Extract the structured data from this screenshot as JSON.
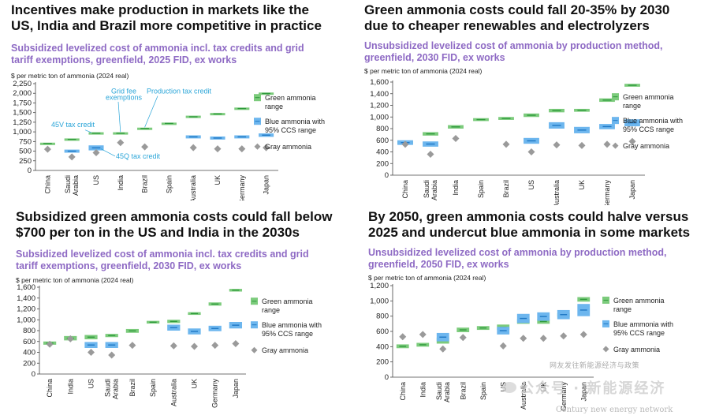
{
  "legend_labels": {
    "green": [
      "Green ammonia",
      "range"
    ],
    "blue": [
      "Blue ammonia with",
      "95% CCS range"
    ],
    "gray": "Gray ammonia"
  },
  "colors": {
    "green": "#7ccb7c",
    "green_mid": "#2f9a3c",
    "blue": "#6db6ee",
    "blue_mid": "#1f78c4",
    "gray": "#9a9a9a",
    "subtitle": "#8e6ac4",
    "callout": "#2aa5d8"
  },
  "watermark": {
    "line1": "网友发往新能源经济与政策",
    "line2": "Century new energy network",
    "account": "公众号 · 新能源经济"
  },
  "charts": [
    {
      "headline": [
        "Incentives make production in markets like the",
        "US, India and Brazil more competitive in practice"
      ],
      "subtitle": [
        "Subsidized levelized cost of ammonia incl. tax credits and grid",
        "tariff exemptions, greenfield, 2025 FID, ex works"
      ],
      "unit": "$ per metric ton of ammonia (2024 real)",
      "callouts": [
        "45V tax credit",
        "Grid fee",
        "exemptions",
        "Production tax credit",
        "45Q tax credit"
      ],
      "chart_data": {
        "type": "range",
        "ylim": [
          0,
          2250
        ],
        "yticks": [
          0,
          250,
          500,
          750,
          1000,
          1250,
          1500,
          1750,
          2000,
          2250
        ],
        "categories": [
          "China",
          "Saudi Arabia",
          "US",
          "India",
          "Brazil",
          "Spain",
          "Australia",
          "UK",
          "Germany",
          "Japan"
        ],
        "green": [
          [
            680,
            720
          ],
          [
            780,
            830
          ],
          [
            940,
            990
          ],
          [
            940,
            990
          ],
          [
            1070,
            1110
          ],
          [
            1200,
            1240
          ],
          [
            1360,
            1420
          ],
          [
            1440,
            1490
          ],
          [
            1580,
            1630
          ],
          [
            1970,
            2020
          ]
        ],
        "blue": [
          null,
          [
            460,
            540
          ],
          [
            520,
            650
          ],
          null,
          null,
          null,
          [
            830,
            910
          ],
          [
            800,
            880
          ],
          [
            830,
            910
          ],
          [
            870,
            960
          ]
        ],
        "gray": [
          550,
          350,
          460,
          720,
          610,
          null,
          590,
          560,
          560,
          590
        ]
      }
    },
    {
      "headline": [
        "Green ammonia costs could fall 20-35% by 2030",
        "due to cheaper renewables and electrolyzers"
      ],
      "subtitle": [
        "Unsubsidized levelized cost of ammonia by production method,",
        "greenfield, 2030 FID, ex works"
      ],
      "unit": "$ per metric ton of ammonia (2024 real)",
      "callouts": [],
      "chart_data": {
        "type": "range",
        "ylim": [
          0,
          1600
        ],
        "yticks": [
          0,
          200,
          400,
          600,
          800,
          1000,
          1200,
          1400,
          1600
        ],
        "categories": [
          "China",
          "Saudi Arabia",
          "India",
          "Spain",
          "Brazil",
          "US",
          "Australia",
          "UK",
          "Germany",
          "Japan"
        ],
        "green": [
          [
            540,
            590
          ],
          [
            680,
            740
          ],
          [
            800,
            860
          ],
          [
            930,
            980
          ],
          [
            950,
            1000
          ],
          [
            1000,
            1060
          ],
          [
            1080,
            1140
          ],
          [
            1090,
            1140
          ],
          [
            1260,
            1320
          ],
          [
            1520,
            1570
          ]
        ],
        "blue": [
          [
            520,
            600
          ],
          [
            490,
            580
          ],
          null,
          null,
          null,
          [
            540,
            640
          ],
          [
            800,
            910
          ],
          [
            720,
            830
          ],
          [
            790,
            880
          ],
          [
            840,
            960
          ]
        ],
        "gray": [
          530,
          360,
          630,
          null,
          530,
          400,
          520,
          510,
          530,
          580
        ]
      }
    },
    {
      "headline": [
        "Subsidized green ammonia costs could fall below",
        "$700 per ton in the US and India in the 2030s"
      ],
      "subtitle": [
        "Subsidized levelized cost of ammonia incl. tax credits and grid",
        "tariff exemptions, greenfield, 2030 FID, ex works"
      ],
      "unit": "$ per metric ton of ammonia (2024 real)",
      "callouts": [],
      "chart_data": {
        "type": "range",
        "ylim": [
          0,
          1600
        ],
        "yticks": [
          0,
          200,
          400,
          600,
          800,
          1000,
          1200,
          1400,
          1600
        ],
        "categories": [
          "China",
          "India",
          "US",
          "Saudi Arabia",
          "Brazil",
          "Spain",
          "Australia",
          "UK",
          "Germany",
          "Japan"
        ],
        "green": [
          [
            540,
            600
          ],
          [
            620,
            700
          ],
          [
            640,
            720
          ],
          [
            680,
            740
          ],
          [
            760,
            830
          ],
          [
            930,
            980
          ],
          [
            940,
            1000
          ],
          [
            1090,
            1140
          ],
          [
            1260,
            1320
          ],
          [
            1520,
            1570
          ]
        ],
        "blue": [
          null,
          null,
          [
            480,
            590
          ],
          [
            480,
            590
          ],
          null,
          null,
          [
            800,
            910
          ],
          [
            730,
            840
          ],
          [
            790,
            890
          ],
          [
            840,
            960
          ]
        ],
        "gray": [
          550,
          650,
          400,
          350,
          530,
          null,
          520,
          510,
          530,
          560
        ]
      }
    },
    {
      "headline": [
        "By 2050, green ammonia costs could halve versus",
        "2025 and undercut blue ammonia in some markets"
      ],
      "subtitle": [
        "Unsubsidized levelized cost of ammonia by production method,",
        "greenfield, 2050 FID, ex works"
      ],
      "unit": "$ per metric ton of ammonia (2024 real)",
      "callouts": [],
      "chart_data": {
        "type": "range",
        "ylim": [
          0,
          1200
        ],
        "yticks": [
          0,
          200,
          400,
          600,
          800,
          1000,
          1200
        ],
        "categories": [
          "China",
          "India",
          "Saudi Arabia",
          "Brazil",
          "Spain",
          "US",
          "Australia",
          "UK",
          "Germany",
          "Japan"
        ],
        "green": [
          [
            380,
            430
          ],
          [
            400,
            450
          ],
          [
            440,
            520
          ],
          [
            590,
            650
          ],
          [
            620,
            670
          ],
          [
            620,
            690
          ],
          [
            700,
            760
          ],
          [
            700,
            760
          ],
          [
            790,
            840
          ],
          [
            990,
            1050
          ]
        ],
        "blue": [
          null,
          null,
          [
            470,
            580
          ],
          null,
          null,
          [
            560,
            660
          ],
          [
            710,
            830
          ],
          [
            740,
            850
          ],
          [
            760,
            880
          ],
          [
            800,
            960
          ]
        ],
        "gray": [
          530,
          560,
          370,
          520,
          null,
          410,
          510,
          510,
          540,
          560
        ]
      }
    }
  ]
}
